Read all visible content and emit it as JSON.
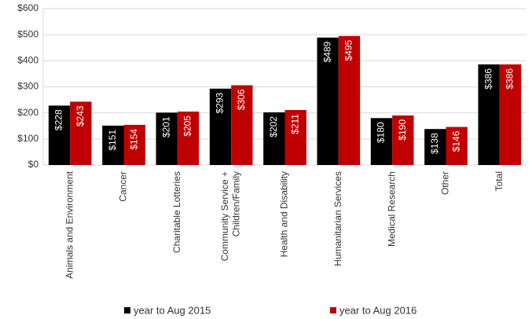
{
  "chart_data": {
    "type": "bar",
    "categories": [
      "Animals and Environment",
      "Cancer",
      "Charitable Lotteries",
      "Community Service +\nChildren/Family",
      "Health and Disability",
      "Humanitarian Services",
      "Medical Research",
      "Other",
      "Total"
    ],
    "series": [
      {
        "name": "year to Aug 2015",
        "color": "#000000",
        "values": [
          228,
          151,
          201,
          293,
          202,
          489,
          180,
          138,
          386
        ],
        "value_labels": [
          "$228",
          "$151",
          "$201",
          "$293",
          "$202",
          "$489",
          "$180",
          "$138",
          "$386"
        ]
      },
      {
        "name": "year to Aug 2016",
        "color": "#c00000",
        "values": [
          243,
          154,
          205,
          306,
          211,
          495,
          190,
          146,
          386
        ],
        "value_labels": [
          "$243",
          "$154",
          "$205",
          "$306",
          "$211",
          "$495",
          "$190",
          "$146",
          "$386"
        ]
      }
    ],
    "ylim": [
      0,
      600
    ],
    "yticks": [
      {
        "value": 0,
        "label": "$0"
      },
      {
        "value": 100,
        "label": "$100"
      },
      {
        "value": 200,
        "label": "$200"
      },
      {
        "value": 300,
        "label": "$300"
      },
      {
        "value": 400,
        "label": "$400"
      },
      {
        "value": 500,
        "label": "$500"
      },
      {
        "value": 600,
        "label": "$600"
      }
    ],
    "grid": true
  }
}
